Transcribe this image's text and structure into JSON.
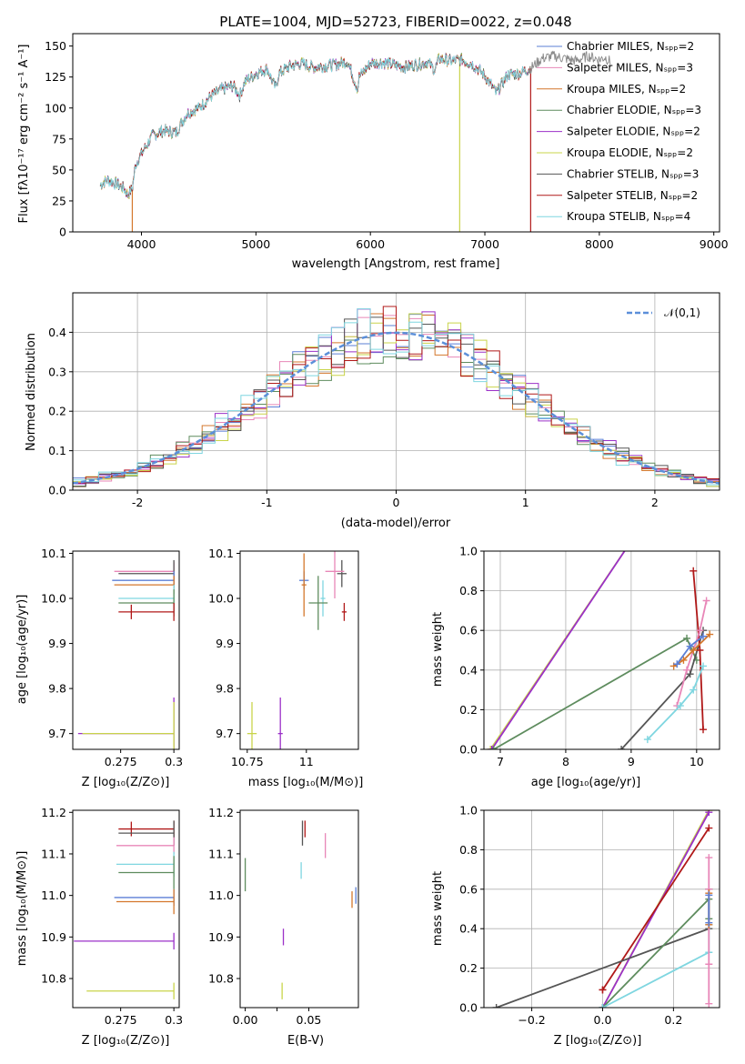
{
  "chart_data": [
    {
      "id": "spectrum",
      "type": "line",
      "title": "PLATE=1004, MJD=52723, FIBERID=0022, z=0.048",
      "xlabel": "wavelength [Angstrom, rest frame]",
      "ylabel": "Flux [fλ10⁻¹⁷ erg cm⁻² s⁻¹ A⁻¹]",
      "xlim": [
        3400,
        9050
      ],
      "ylim": [
        0,
        160
      ],
      "xticks": [
        4000,
        5000,
        6000,
        7000,
        8000,
        9000
      ],
      "yticks": [
        0,
        25,
        50,
        75,
        100,
        125,
        150
      ],
      "legend_position": "top-right",
      "series": [
        {
          "name": "Chabrier MILES, Nₛₚₚ=2",
          "color": "#5b7fd6"
        },
        {
          "name": "Salpeter MILES, Nₛₚₚ=3",
          "color": "#e887b8"
        },
        {
          "name": "Kroupa MILES, Nₛₚₚ=2",
          "color": "#d4772c"
        },
        {
          "name": "Chabrier ELODIE, Nₛₚₚ=3",
          "color": "#5e8c5e"
        },
        {
          "name": "Salpeter ELODIE, Nₛₚₚ=2",
          "color": "#9b30c8"
        },
        {
          "name": "Kroupa ELODIE, Nₛₚₚ=2",
          "color": "#c9d44a"
        },
        {
          "name": "Chabrier STELIB, Nₛₚₚ=3",
          "color": "#555555"
        },
        {
          "name": "Salpeter STELIB, Nₛₚₚ=2",
          "color": "#b01818"
        },
        {
          "name": "Kroupa STELIB, Nₛₚₚ=4",
          "color": "#7fd6e0"
        }
      ],
      "continuum": {
        "x": [
          3640,
          3700,
          3800,
          3850,
          3880,
          3920,
          3950,
          4000,
          4100,
          4200,
          4300,
          4400,
          4500,
          4600,
          4700,
          4800,
          4860,
          4900,
          5000,
          5100,
          5150,
          5175,
          5200,
          5300,
          5400,
          5500,
          5600,
          5700,
          5800,
          5890,
          5900,
          6000,
          6100,
          6200,
          6300,
          6400,
          6500,
          6563,
          6600,
          6700,
          6800,
          6900,
          7000,
          7100,
          7200,
          7300,
          7400,
          7500,
          7600,
          7700,
          7800,
          7900,
          8000,
          8050,
          8100
        ],
        "y": [
          38,
          42,
          38,
          35,
          30,
          35,
          55,
          63,
          78,
          82,
          80,
          96,
          100,
          109,
          115,
          118,
          110,
          121,
          128,
          132,
          120,
          116,
          128,
          134,
          136,
          133,
          134,
          135,
          138,
          115,
          125,
          136,
          137,
          135,
          133,
          135,
          137,
          131,
          140,
          138,
          139,
          135,
          126,
          112,
          127,
          128,
          132,
          140,
          142,
          140,
          138,
          142,
          139,
          141,
          137
        ]
      },
      "model_dropouts": [
        {
          "series": "Kroupa MILES, Nₛₚₚ=2",
          "x": 3920
        },
        {
          "series": "Kroupa ELODIE, Nₛₚₚ=2",
          "x": 6780
        },
        {
          "series": "Salpeter STELIB, Nₛₚₚ=2",
          "x": 7400
        }
      ],
      "data_only_range": [
        7400,
        8100
      ]
    },
    {
      "id": "residuals",
      "type": "histogram",
      "xlabel": "(data-model)/error",
      "ylabel": "Normed distribution",
      "xlim": [
        -2.5,
        2.5
      ],
      "ylim": [
        0,
        0.5
      ],
      "xticks": [
        -2,
        -1,
        0,
        1,
        2
      ],
      "yticks": [
        0.0,
        0.1,
        0.2,
        0.3,
        0.4
      ],
      "grid": true,
      "legend_position": "top-right",
      "reference": {
        "name": "𝒩(0,1)",
        "type": "gaussian",
        "mean": 0,
        "sigma": 1,
        "color": "#5b8fd9"
      },
      "bin_width": 0.1
    },
    {
      "id": "z-age",
      "type": "errorbar",
      "xlabel": "Z [log₁₀(Z/Z⊙)]",
      "ylabel": "age  [log₁₀(age/yr)]",
      "xlim": [
        0.2525,
        0.3025
      ],
      "ylim": [
        9.665,
        10.105
      ],
      "xticks": [
        0.275,
        0.3
      ],
      "yticks": [
        9.7,
        9.8,
        9.9,
        10.0,
        10.1
      ],
      "points": [
        {
          "color": "#9b30c8",
          "x": 0.3,
          "xerr_left": 0.045,
          "y": 9.7,
          "yerr": 0.08
        },
        {
          "color": "#c9d44a",
          "x": 0.3,
          "xerr_left": 0.043,
          "y": 9.7,
          "yerr": 0.07
        },
        {
          "color": "#e887b8",
          "x": 0.3,
          "xerr_left": 0.028,
          "y": 10.06,
          "yerr": 0.02
        },
        {
          "color": "#555555",
          "x": 0.3,
          "xerr_left": 0.026,
          "y": 10.055,
          "yerr": 0.03
        },
        {
          "color": "#5b7fd6",
          "x": 0.3,
          "xerr_left": 0.029,
          "y": 10.04,
          "yerr": 0.02
        },
        {
          "color": "#d4772c",
          "x": 0.3,
          "xerr_left": 0.028,
          "y": 10.03,
          "yerr": 0.02
        },
        {
          "color": "#7fd6e0",
          "x": 0.3,
          "xerr_left": 0.026,
          "y": 10.0,
          "yerr": 0.03
        },
        {
          "color": "#5e8c5e",
          "x": 0.3,
          "xerr_left": 0.026,
          "y": 9.99,
          "yerr": 0.03
        },
        {
          "color": "#b01818",
          "x": 0.3,
          "xerr_left": 0.026,
          "y": 9.97,
          "yerr": 0.02,
          "marker_x": 0.28
        }
      ]
    },
    {
      "id": "mass-age",
      "type": "errorbar",
      "xlabel": "mass [log₁₀(M/M⊙)]",
      "xlim": [
        10.72,
        11.22
      ],
      "ylim": [
        9.665,
        10.105
      ],
      "xticks": [
        10.75,
        11.0
      ],
      "yticks": [
        9.7,
        9.8,
        9.9,
        10.0,
        10.1
      ],
      "points": [
        {
          "color": "#c9d44a",
          "x": 10.77,
          "xerr": 0.02,
          "y": 9.7,
          "yerr": 0.07
        },
        {
          "color": "#9b30c8",
          "x": 10.89,
          "xerr": 0.01,
          "y": 9.7,
          "yerr": 0.08
        },
        {
          "color": "#555555",
          "x": 11.15,
          "xerr": 0.02,
          "y": 10.055,
          "yerr": 0.03
        },
        {
          "color": "#e887b8",
          "x": 11.12,
          "xerr": 0.04,
          "y": 10.06,
          "yerr": 0.06
        },
        {
          "color": "#5b7fd6",
          "x": 10.99,
          "xerr": 0.02,
          "y": 10.04,
          "yerr": 0.02
        },
        {
          "color": "#d4772c",
          "x": 10.99,
          "xerr": 0.01,
          "y": 10.03,
          "yerr": 0.07
        },
        {
          "color": "#7fd6e0",
          "x": 11.07,
          "xerr": 0.01,
          "y": 10.0,
          "yerr": 0.04
        },
        {
          "color": "#5e8c5e",
          "x": 11.05,
          "xerr": 0.04,
          "y": 9.99,
          "yerr": 0.06
        },
        {
          "color": "#b01818",
          "x": 11.16,
          "xerr": 0.01,
          "y": 9.97,
          "yerr": 0.02
        }
      ]
    },
    {
      "id": "age-weight",
      "type": "line",
      "xlabel": "age  [log₁₀(age/yr)]",
      "ylabel": "mass weight",
      "xlim": [
        6.75,
        10.35
      ],
      "ylim": [
        0,
        1
      ],
      "xticks": [
        7,
        8,
        9,
        10
      ],
      "yticks": [
        0.0,
        0.2,
        0.4,
        0.6,
        0.8,
        1.0
      ],
      "grid": true,
      "series": [
        {
          "color": "#c9d44a",
          "x": [
            6.85,
            9.0
          ],
          "y": [
            0,
            1.05
          ]
        },
        {
          "color": "#9b30c8",
          "x": [
            6.87,
            9.0
          ],
          "y": [
            0,
            1.05
          ]
        },
        {
          "color": "#5e8c5e",
          "x": [
            6.9,
            9.85,
            10.0
          ],
          "y": [
            0,
            0.56,
            0.45
          ]
        },
        {
          "color": "#555555",
          "x": [
            8.85,
            9.9,
            10.1
          ],
          "y": [
            0,
            0.38,
            0.6
          ]
        },
        {
          "color": "#b01818",
          "x": [
            9.95,
            10.05,
            10.1
          ],
          "y": [
            0.9,
            0.5,
            0.1
          ]
        },
        {
          "color": "#e887b8",
          "x": [
            9.7,
            9.85,
            10.05,
            10.15
          ],
          "y": [
            0.22,
            0.4,
            0.6,
            0.75
          ]
        },
        {
          "color": "#7fd6e0",
          "x": [
            9.25,
            9.75,
            9.95,
            10.1
          ],
          "y": [
            0.05,
            0.22,
            0.3,
            0.42
          ]
        },
        {
          "color": "#d4772c",
          "x": [
            9.65,
            9.8,
            9.95,
            10.2
          ],
          "y": [
            0.42,
            0.45,
            0.5,
            0.58
          ]
        },
        {
          "color": "#5b7fd6",
          "x": [
            9.7,
            9.9,
            10.1
          ],
          "y": [
            0.43,
            0.52,
            0.57
          ]
        }
      ]
    },
    {
      "id": "z-mass",
      "type": "errorbar",
      "xlabel": "Z [log₁₀(Z/Z⊙)]",
      "ylabel": "mass [log₁₀(M/M⊙)]",
      "xlim": [
        0.2525,
        0.3025
      ],
      "ylim": [
        10.73,
        11.205
      ],
      "xticks": [
        0.275,
        0.3
      ],
      "yticks": [
        10.8,
        10.9,
        11.0,
        11.1,
        11.2
      ],
      "points": [
        {
          "color": "#b01818",
          "x": 0.3,
          "xerr_left": 0.026,
          "y": 11.16,
          "yerr": 0.02,
          "marker_x": 0.28
        },
        {
          "color": "#555555",
          "x": 0.3,
          "xerr_left": 0.026,
          "y": 11.15,
          "yerr": 0.03
        },
        {
          "color": "#e887b8",
          "x": 0.3,
          "xerr_left": 0.027,
          "y": 11.12,
          "yerr": 0.02
        },
        {
          "color": "#7fd6e0",
          "x": 0.3,
          "xerr_left": 0.027,
          "y": 11.075,
          "yerr": 0.03
        },
        {
          "color": "#5e8c5e",
          "x": 0.3,
          "xerr_left": 0.026,
          "y": 11.055,
          "yerr": 0.04
        },
        {
          "color": "#5b7fd6",
          "x": 0.3,
          "xerr_left": 0.028,
          "y": 10.995,
          "yerr": 0.02
        },
        {
          "color": "#d4772c",
          "x": 0.3,
          "xerr_left": 0.027,
          "y": 10.985,
          "yerr": 0.03
        },
        {
          "color": "#9b30c8",
          "x": 0.3,
          "xerr_left": 0.047,
          "y": 10.89,
          "yerr": 0.02
        },
        {
          "color": "#c9d44a",
          "x": 0.3,
          "xerr_left": 0.041,
          "y": 10.77,
          "yerr": 0.02
        }
      ]
    },
    {
      "id": "ebv-mass",
      "type": "errorbar",
      "xlabel": "E(B-V)",
      "xlim": [
        -0.004,
        0.089
      ],
      "ylim": [
        10.73,
        11.205
      ],
      "xticks": [
        0.0,
        0.025,
        0.05
      ],
      "xticklabels": [
        "0.00",
        "",
        "0.05"
      ],
      "yticks": [
        10.8,
        10.9,
        11.0,
        11.1,
        11.2
      ],
      "points": [
        {
          "color": "#b01818",
          "x": 0.047,
          "y": 11.16,
          "yerr": 0.02
        },
        {
          "color": "#555555",
          "x": 0.045,
          "y": 11.15,
          "yerr": 0.03
        },
        {
          "color": "#e887b8",
          "x": 0.063,
          "y": 11.12,
          "yerr": 0.03
        },
        {
          "color": "#7fd6e0",
          "x": 0.044,
          "y": 11.06,
          "yerr": 0.02
        },
        {
          "color": "#5e8c5e",
          "x": 0.0,
          "y": 11.05,
          "yerr": 0.04
        },
        {
          "color": "#5b7fd6",
          "x": 0.087,
          "y": 11.0,
          "yerr": 0.02
        },
        {
          "color": "#d4772c",
          "x": 0.084,
          "y": 10.99,
          "yerr": 0.02
        },
        {
          "color": "#9b30c8",
          "x": 0.03,
          "y": 10.9,
          "yerr": 0.02
        },
        {
          "color": "#c9d44a",
          "x": 0.029,
          "y": 10.77,
          "yerr": 0.02
        }
      ]
    },
    {
      "id": "z-weight",
      "type": "line",
      "xlabel": "Z [log₁₀(Z/Z⊙)]",
      "ylabel": "mass weight",
      "xlim": [
        -0.335,
        0.33
      ],
      "ylim": [
        0,
        1
      ],
      "xticks": [
        -0.2,
        0.0,
        0.2
      ],
      "xticklabels": [
        "−0.2",
        "0.0",
        "0.2"
      ],
      "yticks": [
        0.0,
        0.2,
        0.4,
        0.6,
        0.8,
        1.0
      ],
      "grid": true,
      "series": [
        {
          "color": "#c9d44a",
          "x": [
            0.0,
            0.3
          ],
          "y": [
            0,
            1.0
          ]
        },
        {
          "color": "#9b30c8",
          "x": [
            0.0,
            0.3
          ],
          "y": [
            0,
            0.99
          ]
        },
        {
          "color": "#b01818",
          "x": [
            0.0,
            0.0,
            0.3
          ],
          "y": [
            0.09,
            0.09,
            0.91
          ]
        },
        {
          "color": "#555555",
          "x": [
            -0.3,
            0.3,
            0.3
          ],
          "y": [
            0,
            0.4,
            0.6
          ]
        },
        {
          "color": "#5e8c5e",
          "x": [
            0.0,
            0.3,
            0.3
          ],
          "y": [
            0,
            0.55,
            0.45
          ]
        },
        {
          "color": "#7fd6e0",
          "x": [
            0.0,
            0.3,
            0.3
          ],
          "y": [
            0,
            0.28,
            0.42
          ]
        },
        {
          "color": "#e887b8",
          "x": [
            0.3,
            0.3,
            0.3,
            0.3
          ],
          "y": [
            0.02,
            0.22,
            0.6,
            0.76
          ]
        },
        {
          "color": "#d4772c",
          "x": [
            0.3,
            0.3
          ],
          "y": [
            0.42,
            0.58
          ]
        },
        {
          "color": "#5b7fd6",
          "x": [
            0.3,
            0.3
          ],
          "y": [
            0.43,
            0.57
          ]
        }
      ]
    }
  ]
}
